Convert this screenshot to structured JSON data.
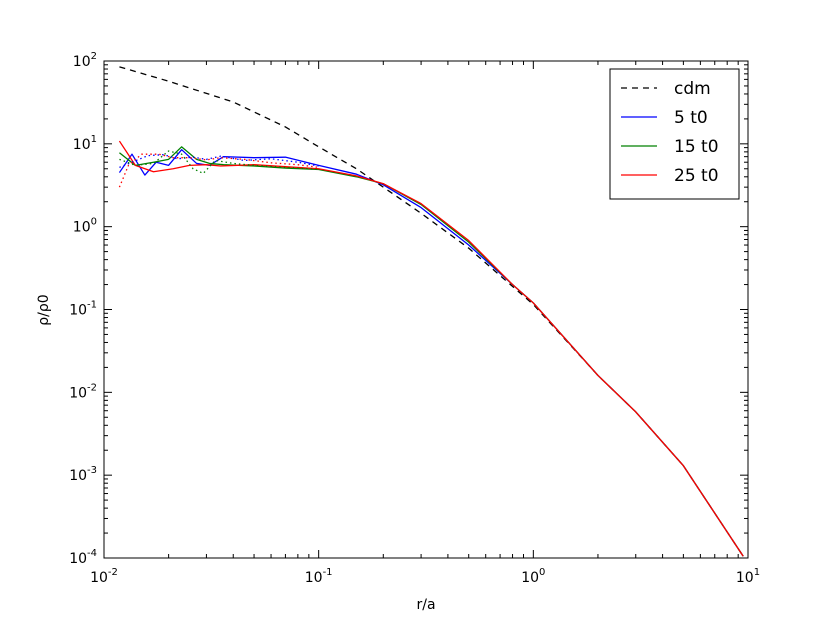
{
  "chart_data": {
    "type": "line",
    "title": "",
    "xlabel": "r/a",
    "ylabel": "ρ/ρ0",
    "xscale": "log",
    "yscale": "log",
    "xlim": [
      0.01,
      10
    ],
    "ylim": [
      0.0001,
      100
    ],
    "grid": false,
    "legend_position": "top-right",
    "x_ticks": [
      {
        "value": 0.01,
        "base": "10",
        "exp": "-2"
      },
      {
        "value": 0.1,
        "base": "10",
        "exp": "-1"
      },
      {
        "value": 1,
        "base": "10",
        "exp": "0"
      },
      {
        "value": 10,
        "base": "10",
        "exp": "1"
      }
    ],
    "y_ticks": [
      {
        "value": 100,
        "base": "10",
        "exp": "2"
      },
      {
        "value": 10,
        "base": "10",
        "exp": "1"
      },
      {
        "value": 1,
        "base": "10",
        "exp": "0"
      },
      {
        "value": 0.1,
        "base": "10",
        "exp": "-1"
      },
      {
        "value": 0.01,
        "base": "10",
        "exp": "-2"
      },
      {
        "value": 0.001,
        "base": "10",
        "exp": "-3"
      },
      {
        "value": 0.0001,
        "base": "10",
        "exp": "-4"
      }
    ],
    "series": [
      {
        "name": "cdm",
        "color": "#000000",
        "style": "dashed",
        "in_legend": true,
        "x": [
          0.0118,
          0.02,
          0.04,
          0.07,
          0.1,
          0.15,
          0.2,
          0.3,
          0.5,
          0.8,
          1,
          2,
          3,
          5,
          9.5
        ],
        "y": [
          85,
          57,
          32,
          16,
          9.2,
          5.0,
          3.0,
          1.45,
          0.55,
          0.19,
          0.115,
          0.016,
          0.0058,
          0.0013,
          0.000105
        ]
      },
      {
        "name": "5 t0",
        "color": "#0000ff",
        "style": "solid",
        "in_legend": true,
        "x": [
          0.0118,
          0.0135,
          0.0155,
          0.0175,
          0.02,
          0.023,
          0.027,
          0.031,
          0.036,
          0.05,
          0.07,
          0.1,
          0.15,
          0.2,
          0.3,
          0.5,
          0.8,
          1,
          2,
          3,
          5,
          9.5
        ],
        "y": [
          4.5,
          7.5,
          4.2,
          6.0,
          5.5,
          8.5,
          5.8,
          5.5,
          7.0,
          6.8,
          6.9,
          5.5,
          4.3,
          3.2,
          1.7,
          0.6,
          0.2,
          0.12,
          0.016,
          0.0058,
          0.0013,
          0.000105
        ]
      },
      {
        "name": "15 t0",
        "color": "#008000",
        "style": "solid",
        "in_legend": true,
        "x": [
          0.0118,
          0.014,
          0.017,
          0.02,
          0.023,
          0.027,
          0.031,
          0.036,
          0.05,
          0.07,
          0.1,
          0.15,
          0.2,
          0.3,
          0.5,
          0.8,
          1,
          2,
          3,
          5,
          9.5
        ],
        "y": [
          7.8,
          5.5,
          6.0,
          6.5,
          9.2,
          6.5,
          5.8,
          5.6,
          5.4,
          5.1,
          4.9,
          4.0,
          3.3,
          1.85,
          0.65,
          0.2,
          0.12,
          0.016,
          0.0058,
          0.0013,
          0.000105
        ]
      },
      {
        "name": "25 t0",
        "color": "#ff0000",
        "style": "solid",
        "in_legend": true,
        "x": [
          0.0118,
          0.014,
          0.017,
          0.021,
          0.025,
          0.03,
          0.035,
          0.05,
          0.07,
          0.1,
          0.15,
          0.2,
          0.3,
          0.5,
          0.8,
          1,
          2,
          3,
          5,
          9.5
        ],
        "y": [
          10.8,
          5.5,
          4.6,
          5.0,
          5.5,
          5.6,
          5.4,
          5.6,
          5.3,
          5.0,
          4.1,
          3.3,
          1.9,
          0.68,
          0.2,
          0.12,
          0.016,
          0.0058,
          0.0013,
          0.000105
        ]
      },
      {
        "name": "",
        "color": "#0000ff",
        "style": "dotted",
        "in_legend": false,
        "x": [
          0.0118,
          0.0135,
          0.016,
          0.019,
          0.022,
          0.026,
          0.03,
          0.035,
          0.045,
          0.06,
          0.08,
          0.1
        ],
        "y": [
          5.2,
          6.0,
          7.2,
          7.4,
          6.6,
          6.9,
          6.5,
          7.1,
          6.3,
          6.6,
          6.0,
          5.4
        ]
      },
      {
        "name": "",
        "color": "#008000",
        "style": "dotted",
        "in_legend": false,
        "x": [
          0.0118,
          0.014,
          0.017,
          0.02,
          0.023,
          0.026,
          0.029,
          0.033,
          0.04,
          0.05,
          0.07,
          0.1
        ],
        "y": [
          6.5,
          5.5,
          5.8,
          8.2,
          7.5,
          5.0,
          4.4,
          6.3,
          5.8,
          5.5,
          5.2,
          4.9
        ]
      },
      {
        "name": "",
        "color": "#ff0000",
        "style": "dotted",
        "in_legend": false,
        "x": [
          0.0118,
          0.013,
          0.015,
          0.018,
          0.021,
          0.025,
          0.03,
          0.035,
          0.045,
          0.06,
          0.08,
          0.1
        ],
        "y": [
          3.0,
          5.5,
          7.5,
          7.5,
          6.8,
          6.8,
          6.4,
          6.8,
          6.5,
          5.9,
          5.6,
          5.2
        ]
      }
    ]
  }
}
